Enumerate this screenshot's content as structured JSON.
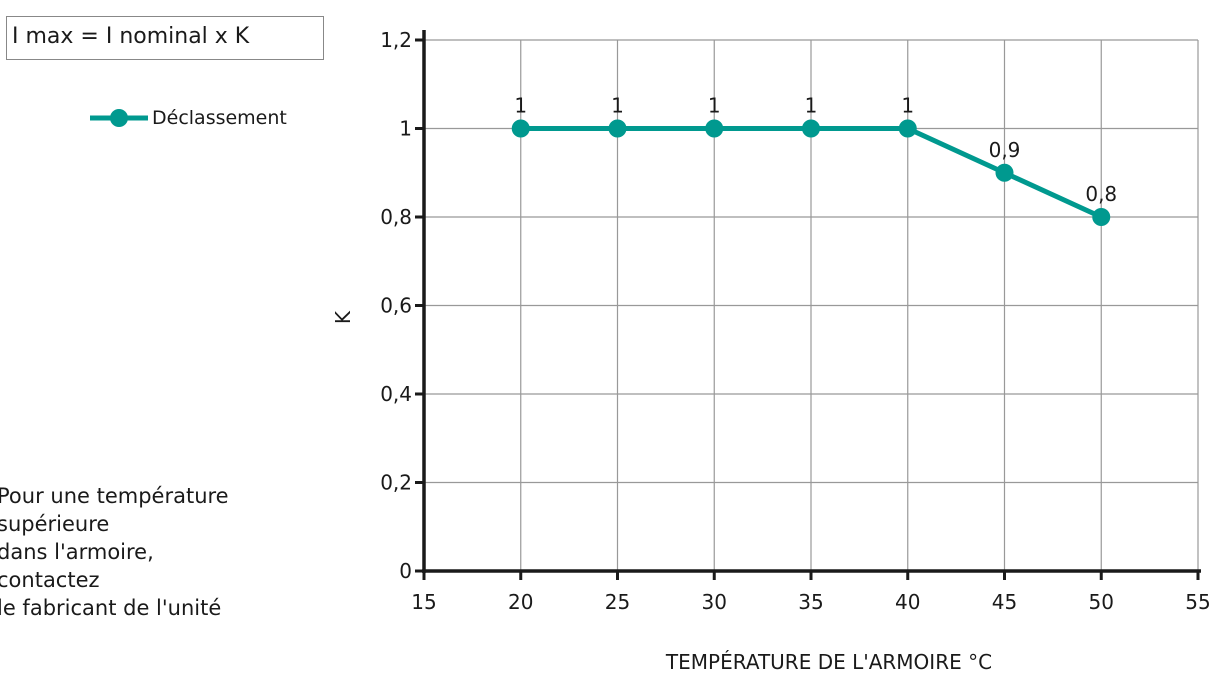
{
  "formula": "I max = I nominal x K",
  "note_lines": [
    "Pour une température",
    "supérieure",
    "dans l'armoire,",
    "contactez",
    "le fabricant de l'unité"
  ],
  "colors": {
    "series": "#00998f",
    "grid": "#999999",
    "axis": "#1a1a1a"
  },
  "chart_data": {
    "type": "line",
    "xlabel": "TEMPÉRATURE DE L'ARMOIRE °C",
    "ylabel": "K",
    "xlim": [
      15,
      55
    ],
    "ylim": [
      0,
      1.2
    ],
    "x_ticks": [
      "15",
      "20",
      "25",
      "30",
      "35",
      "40",
      "45",
      "50",
      "55"
    ],
    "y_ticks": [
      "0",
      "0,2",
      "0,4",
      "0,6",
      "0,8",
      "1",
      "1,2"
    ],
    "grid": true,
    "legend_position": "top-left",
    "x": [
      20,
      25,
      30,
      35,
      40,
      45,
      50
    ],
    "series": [
      {
        "name": "Déclassement",
        "values": [
          1,
          1,
          1,
          1,
          1,
          0.9,
          0.8
        ],
        "data_labels": [
          "1",
          "1",
          "1",
          "1",
          "1",
          "0,9",
          "0,8"
        ]
      }
    ]
  }
}
